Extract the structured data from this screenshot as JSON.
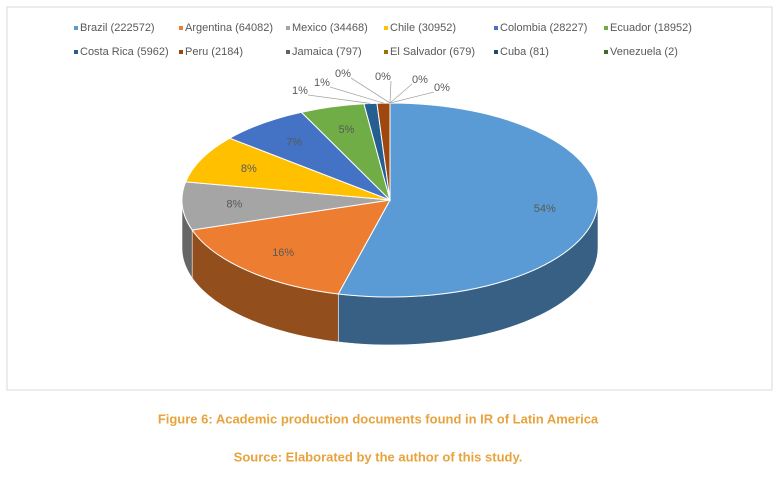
{
  "chart_data": {
    "type": "pie3d",
    "categories": [
      "Brazil (222572)",
      "Argentina (64082)",
      "Mexico (34468)",
      "Chile (30952)",
      "Colombia (28227)",
      "Ecuador (18952)",
      "Costa Rica (5962)",
      "Peru (2184)",
      "Jamaica (797)",
      "El Salvador (679)",
      "Cuba (81)",
      "Venezuela (2)"
    ],
    "values": [
      54,
      16,
      8,
      8,
      7,
      5,
      1,
      1,
      0,
      0,
      0,
      0
    ],
    "value_labels": [
      "54%",
      "16%",
      "8%",
      "8%",
      "7%",
      "5%",
      "1%",
      "1%",
      "0%",
      "0%",
      "0%",
      "0%"
    ],
    "colors": [
      "#5b9bd5",
      "#ed7d31",
      "#a5a5a5",
      "#ffc000",
      "#4472c4",
      "#70ad47",
      "#255e91",
      "#9e480e",
      "#636363",
      "#997300",
      "#264478",
      "#43682b"
    ],
    "caption": "Figure 6: Academic production documents found in IR of Latin America",
    "source": "Source: Elaborated by the author of this study."
  }
}
